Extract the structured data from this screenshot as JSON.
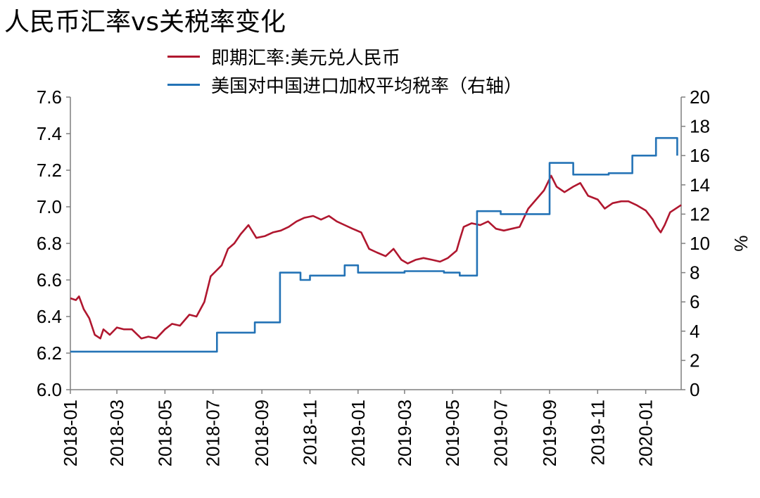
{
  "title": "人民币汇率vs关税率变化",
  "chart_data": {
    "type": "line",
    "title": "人民币汇率vs关税率变化",
    "x_range": [
      "2018-01-01",
      "2020-02-15"
    ],
    "x_ticks": [
      "2018-01",
      "2018-03",
      "2018-05",
      "2018-07",
      "2018-09",
      "2018-11",
      "2019-01",
      "2019-03",
      "2019-05",
      "2019-07",
      "2019-09",
      "2019-11",
      "2020-01"
    ],
    "y_left": {
      "label": "",
      "range": [
        6.0,
        7.6
      ],
      "ticks": [
        "6.0",
        "6.2",
        "6.4",
        "6.6",
        "6.8",
        "7.0",
        "7.2",
        "7.4",
        "7.6"
      ]
    },
    "y_right": {
      "label": "%",
      "range": [
        0,
        20
      ],
      "ticks": [
        "0",
        "2",
        "4",
        "6",
        "8",
        "10",
        "12",
        "14",
        "16",
        "18",
        "20"
      ]
    },
    "grid": false,
    "legend_position": "top",
    "series": [
      {
        "name": "即期汇率:美元兑人民币",
        "axis": "left",
        "color": "#B0172F",
        "step": false,
        "points": [
          [
            "2018-01-01",
            6.5
          ],
          [
            "2018-01-08",
            6.49
          ],
          [
            "2018-01-12",
            6.51
          ],
          [
            "2018-01-18",
            6.44
          ],
          [
            "2018-01-25",
            6.39
          ],
          [
            "2018-02-01",
            6.3
          ],
          [
            "2018-02-08",
            6.28
          ],
          [
            "2018-02-12",
            6.33
          ],
          [
            "2018-02-20",
            6.3
          ],
          [
            "2018-03-01",
            6.34
          ],
          [
            "2018-03-10",
            6.33
          ],
          [
            "2018-03-20",
            6.33
          ],
          [
            "2018-04-01",
            6.28
          ],
          [
            "2018-04-10",
            6.29
          ],
          [
            "2018-04-20",
            6.28
          ],
          [
            "2018-05-01",
            6.33
          ],
          [
            "2018-05-10",
            6.36
          ],
          [
            "2018-05-20",
            6.35
          ],
          [
            "2018-06-01",
            6.41
          ],
          [
            "2018-06-10",
            6.4
          ],
          [
            "2018-06-20",
            6.48
          ],
          [
            "2018-06-28",
            6.62
          ],
          [
            "2018-07-05",
            6.65
          ],
          [
            "2018-07-12",
            6.68
          ],
          [
            "2018-07-20",
            6.77
          ],
          [
            "2018-07-28",
            6.8
          ],
          [
            "2018-08-05",
            6.85
          ],
          [
            "2018-08-15",
            6.9
          ],
          [
            "2018-08-25",
            6.83
          ],
          [
            "2018-09-05",
            6.84
          ],
          [
            "2018-09-15",
            6.86
          ],
          [
            "2018-09-25",
            6.87
          ],
          [
            "2018-10-05",
            6.89
          ],
          [
            "2018-10-15",
            6.92
          ],
          [
            "2018-10-25",
            6.94
          ],
          [
            "2018-11-05",
            6.95
          ],
          [
            "2018-11-15",
            6.93
          ],
          [
            "2018-11-25",
            6.95
          ],
          [
            "2018-12-05",
            6.92
          ],
          [
            "2018-12-15",
            6.9
          ],
          [
            "2018-12-25",
            6.88
          ],
          [
            "2019-01-05",
            6.86
          ],
          [
            "2019-01-15",
            6.77
          ],
          [
            "2019-01-25",
            6.75
          ],
          [
            "2019-02-05",
            6.73
          ],
          [
            "2019-02-15",
            6.77
          ],
          [
            "2019-02-25",
            6.71
          ],
          [
            "2019-03-05",
            6.69
          ],
          [
            "2019-03-15",
            6.71
          ],
          [
            "2019-03-25",
            6.72
          ],
          [
            "2019-04-05",
            6.71
          ],
          [
            "2019-04-15",
            6.7
          ],
          [
            "2019-04-25",
            6.72
          ],
          [
            "2019-05-06",
            6.76
          ],
          [
            "2019-05-10",
            6.82
          ],
          [
            "2019-05-15",
            6.89
          ],
          [
            "2019-05-25",
            6.91
          ],
          [
            "2019-06-05",
            6.9
          ],
          [
            "2019-06-15",
            6.92
          ],
          [
            "2019-06-25",
            6.88
          ],
          [
            "2019-07-05",
            6.87
          ],
          [
            "2019-07-15",
            6.88
          ],
          [
            "2019-07-25",
            6.89
          ],
          [
            "2019-08-05",
            6.99
          ],
          [
            "2019-08-15",
            7.04
          ],
          [
            "2019-08-25",
            7.09
          ],
          [
            "2019-09-03",
            7.17
          ],
          [
            "2019-09-10",
            7.11
          ],
          [
            "2019-09-20",
            7.08
          ],
          [
            "2019-10-01",
            7.11
          ],
          [
            "2019-10-10",
            7.13
          ],
          [
            "2019-10-20",
            7.06
          ],
          [
            "2019-11-01",
            7.04
          ],
          [
            "2019-11-10",
            6.99
          ],
          [
            "2019-11-20",
            7.02
          ],
          [
            "2019-12-01",
            7.03
          ],
          [
            "2019-12-10",
            7.03
          ],
          [
            "2019-12-20",
            7.01
          ],
          [
            "2020-01-01",
            6.98
          ],
          [
            "2020-01-10",
            6.93
          ],
          [
            "2020-01-15",
            6.89
          ],
          [
            "2020-01-20",
            6.86
          ],
          [
            "2020-01-25",
            6.9
          ],
          [
            "2020-02-01",
            6.97
          ],
          [
            "2020-02-15",
            7.01
          ]
        ]
      },
      {
        "name": "美国对中国进口加权平均税率（右轴）",
        "axis": "right",
        "color": "#2473B6",
        "step": true,
        "points": [
          [
            "2018-01-01",
            2.6
          ],
          [
            "2018-07-06",
            3.9
          ],
          [
            "2018-08-23",
            4.6
          ],
          [
            "2018-09-24",
            8.0
          ],
          [
            "2018-10-20",
            7.5
          ],
          [
            "2018-11-01",
            7.8
          ],
          [
            "2018-12-15",
            8.5
          ],
          [
            "2019-01-01",
            8.0
          ],
          [
            "2019-03-01",
            8.1
          ],
          [
            "2019-04-20",
            8.0
          ],
          [
            "2019-05-10",
            7.8
          ],
          [
            "2019-06-01",
            12.2
          ],
          [
            "2019-07-01",
            12.0
          ],
          [
            "2019-09-01",
            15.5
          ],
          [
            "2019-10-01",
            14.7
          ],
          [
            "2019-11-15",
            14.8
          ],
          [
            "2019-12-15",
            16.0
          ],
          [
            "2020-01-14",
            17.2
          ],
          [
            "2020-02-01",
            17.2
          ],
          [
            "2020-02-10",
            16.0
          ]
        ]
      }
    ]
  }
}
